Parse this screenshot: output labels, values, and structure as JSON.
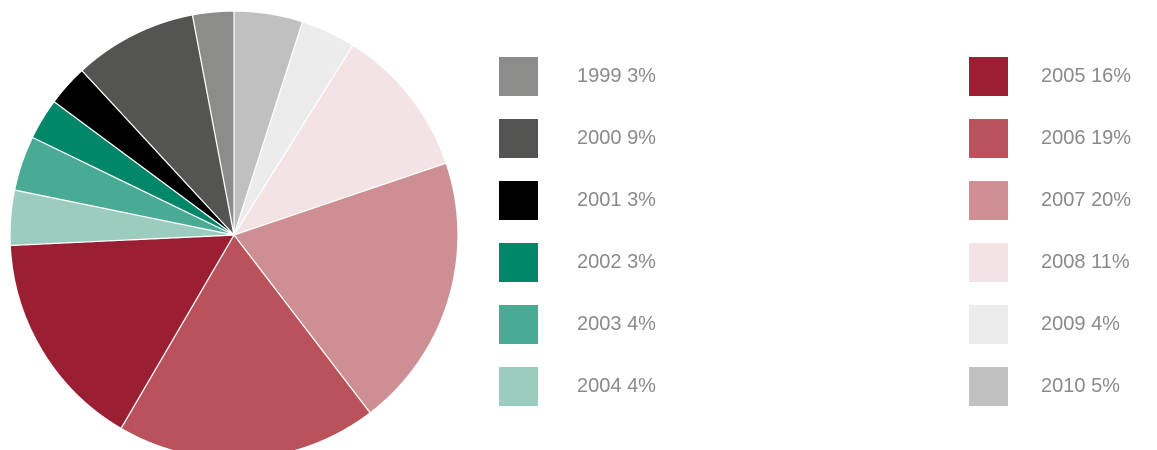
{
  "chart_data": {
    "type": "pie",
    "categories": [
      "1999",
      "2000",
      "2001",
      "2002",
      "2003",
      "2004",
      "2005",
      "2006",
      "2007",
      "2008",
      "2009",
      "2010"
    ],
    "values": [
      3,
      9,
      3,
      3,
      4,
      4,
      16,
      19,
      20,
      11,
      4,
      5
    ],
    "value_labels": [
      "3%",
      "9%",
      "3%",
      "3%",
      "4%",
      "4%",
      "16%",
      "19%",
      "20%",
      "11%",
      "4%",
      "5%"
    ],
    "colors": [
      "#8c8c8a",
      "#545452",
      "#000000",
      "#00876a",
      "#4aab94",
      "#9ccbbf",
      "#9b1f32",
      "#b9525a",
      "#cd8f94",
      "#f3e3e5",
      "#ececec",
      "#c0c0c0"
    ],
    "direction": "counterclockwise"
  }
}
